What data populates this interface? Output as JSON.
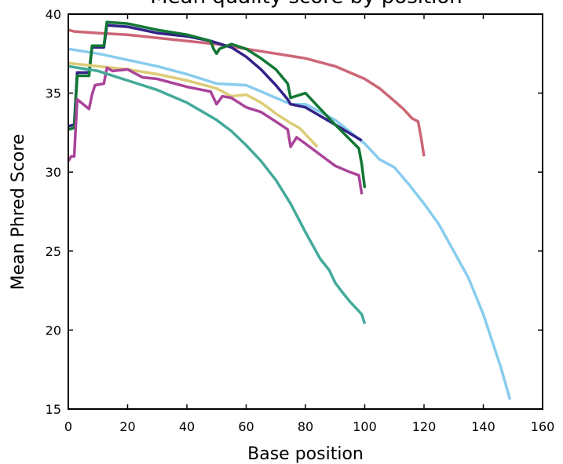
{
  "chart_data": {
    "type": "line",
    "title": "Mean quality score by position",
    "xlabel": "Base position",
    "ylabel": "Mean Phred Score",
    "xlim": [
      0,
      160
    ],
    "ylim": [
      15,
      40
    ],
    "xticks": [
      "0",
      "20",
      "40",
      "60",
      "80",
      "100",
      "120",
      "140",
      "160"
    ],
    "yticks": [
      "15",
      "20",
      "25",
      "30",
      "35",
      "40"
    ],
    "grid": false,
    "series": [
      {
        "color": "#CC6677",
        "x": [
          0,
          2,
          10,
          20,
          30,
          40,
          50,
          60,
          70,
          80,
          90,
          95,
          100,
          105,
          110,
          113,
          116,
          118,
          119,
          120
        ],
        "y": [
          39.0,
          38.9,
          38.8,
          38.7,
          38.5,
          38.3,
          38.1,
          37.8,
          37.5,
          37.2,
          36.7,
          36.3,
          35.9,
          35.3,
          34.5,
          34.0,
          33.4,
          33.2,
          32.2,
          31.0
        ]
      },
      {
        "color": "#88CCEE",
        "x": [
          0,
          10,
          20,
          30,
          40,
          50,
          60,
          70,
          75,
          80,
          90,
          100,
          105,
          110,
          115,
          120,
          125,
          130,
          135,
          140,
          143,
          146,
          149
        ],
        "y": [
          37.8,
          37.5,
          37.1,
          36.7,
          36.2,
          35.6,
          35.5,
          34.7,
          34.3,
          34.3,
          33.3,
          31.8,
          30.8,
          30.3,
          29.2,
          28.0,
          26.7,
          25.0,
          23.3,
          21.0,
          19.3,
          17.6,
          15.6
        ]
      },
      {
        "color": "#332288",
        "x": [
          0,
          2,
          3,
          7,
          8,
          12,
          13,
          20,
          30,
          40,
          48,
          55,
          60,
          65,
          70,
          74,
          75,
          80,
          90,
          99
        ],
        "y": [
          32.9,
          33.0,
          36.3,
          36.3,
          37.9,
          37.9,
          39.3,
          39.2,
          38.8,
          38.6,
          38.3,
          37.9,
          37.3,
          36.5,
          35.5,
          34.6,
          34.3,
          34.1,
          33.0,
          32.0
        ]
      },
      {
        "color": "#117733",
        "x": [
          0,
          2,
          3,
          7,
          8,
          12,
          13,
          20,
          30,
          40,
          48,
          49,
          50,
          51,
          55,
          60,
          65,
          70,
          74,
          75,
          80,
          90,
          98,
          99,
          100
        ],
        "y": [
          32.7,
          32.8,
          36.1,
          36.1,
          38.0,
          38.0,
          39.5,
          39.4,
          39.0,
          38.7,
          38.3,
          37.8,
          37.5,
          37.8,
          38.1,
          37.8,
          37.2,
          36.5,
          35.6,
          34.7,
          35.0,
          33.0,
          31.5,
          30.5,
          29.0
        ]
      },
      {
        "color": "#DDCC77",
        "x": [
          0,
          10,
          20,
          30,
          40,
          50,
          55,
          60,
          65,
          68,
          70,
          75,
          78,
          80,
          84
        ],
        "y": [
          36.9,
          36.7,
          36.5,
          36.2,
          35.8,
          35.3,
          34.8,
          34.9,
          34.4,
          34.0,
          33.7,
          33.1,
          32.8,
          32.4,
          31.6
        ]
      },
      {
        "color": "#AA4499",
        "x": [
          0,
          1,
          2,
          3,
          5,
          7,
          8,
          9,
          12,
          13,
          15,
          20,
          25,
          30,
          40,
          48,
          50,
          52,
          55,
          60,
          65,
          70,
          74,
          75,
          77,
          80,
          85,
          90,
          95,
          98,
          99
        ],
        "y": [
          30.7,
          31.0,
          31.0,
          34.6,
          34.3,
          34.0,
          34.9,
          35.5,
          35.6,
          36.6,
          36.4,
          36.5,
          36.0,
          35.9,
          35.4,
          35.1,
          34.3,
          34.8,
          34.7,
          34.1,
          33.8,
          33.2,
          32.7,
          31.6,
          32.2,
          31.8,
          31.1,
          30.4,
          30.0,
          29.8,
          28.6
        ]
      },
      {
        "color": "#44AA99",
        "x": [
          0,
          10,
          20,
          30,
          40,
          50,
          55,
          60,
          65,
          70,
          75,
          80,
          85,
          88,
          90,
          92,
          95,
          97,
          99,
          100
        ],
        "y": [
          36.7,
          36.4,
          35.8,
          35.2,
          34.4,
          33.3,
          32.6,
          31.7,
          30.7,
          29.5,
          28.0,
          26.2,
          24.5,
          23.8,
          23.0,
          22.5,
          21.8,
          21.4,
          21.0,
          20.4
        ]
      }
    ]
  }
}
